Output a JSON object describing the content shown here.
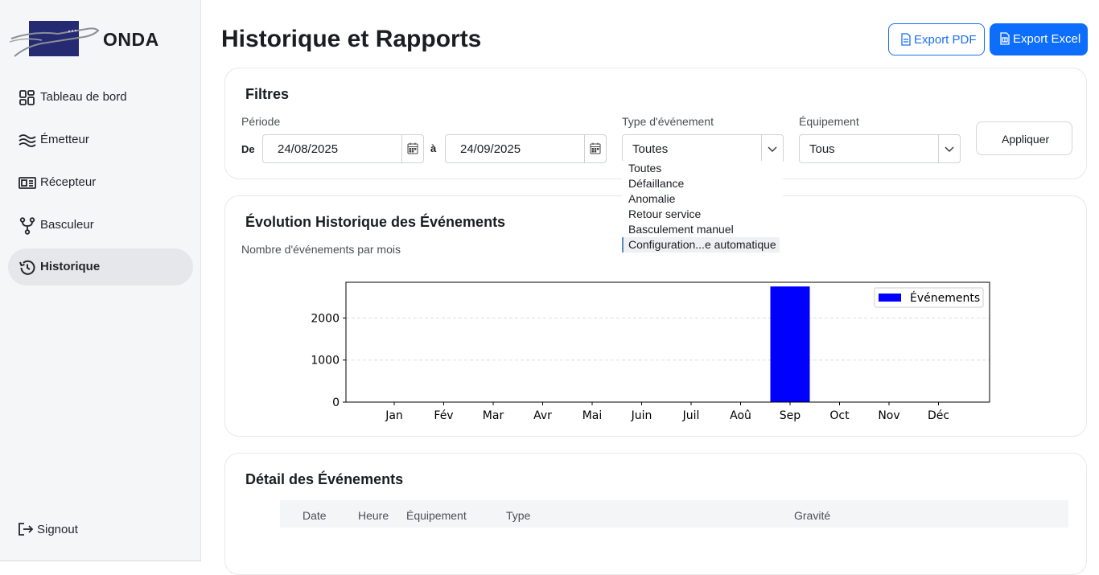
{
  "app": {
    "name": "ONDA"
  },
  "sidebar": {
    "items": [
      {
        "label": "Tableau de bord",
        "icon": "dashboard-icon"
      },
      {
        "label": "Émetteur",
        "icon": "waves-icon"
      },
      {
        "label": "Récepteur",
        "icon": "receiver-icon"
      },
      {
        "label": "Basculeur",
        "icon": "fork-icon"
      },
      {
        "label": "Historique",
        "icon": "history-icon",
        "active": true
      }
    ],
    "signout": "Signout"
  },
  "header": {
    "title": "Historique et Rapports",
    "export_pdf": "Export PDF",
    "export_excel": "Export Excel"
  },
  "filters": {
    "title": "Filtres",
    "period_label": "Période",
    "from_label": "De",
    "from_value": "24/08/2025",
    "to_label": "à",
    "to_value": "24/09/2025",
    "event_type_label": "Type d'événement",
    "event_type_value": "Toutes",
    "event_type_options": [
      "Toutes",
      "Défaillance",
      "Anomalie",
      "Retour service",
      "Basculement manuel",
      "Configuration...e automatique"
    ],
    "equipment_label": "Équipement",
    "equipment_value": "Tous",
    "apply": "Appliquer"
  },
  "evolution": {
    "title": "Évolution Historique des Événements",
    "subtitle": "Nombre d'événements par mois"
  },
  "chart_data": {
    "type": "bar",
    "categories": [
      "Jan",
      "Fév",
      "Mar",
      "Avr",
      "Mai",
      "Juin",
      "Juil",
      "Aoû",
      "Sep",
      "Oct",
      "Nov",
      "Déc"
    ],
    "series": [
      {
        "name": "Événements",
        "values": [
          0,
          0,
          0,
          0,
          0,
          0,
          0,
          0,
          2750,
          0,
          0,
          0
        ],
        "color": "#0000ff"
      }
    ],
    "yticks": [
      0,
      1000,
      2000
    ],
    "ylim": [
      0,
      2850
    ],
    "grid": true,
    "legend": "top-right"
  },
  "details": {
    "title": "Détail des Événements",
    "columns": [
      "Date",
      "Heure",
      "Équipement",
      "Type",
      "Gravité"
    ]
  },
  "colors": {
    "primary": "#0d6efd",
    "bar": "#0000ff"
  }
}
